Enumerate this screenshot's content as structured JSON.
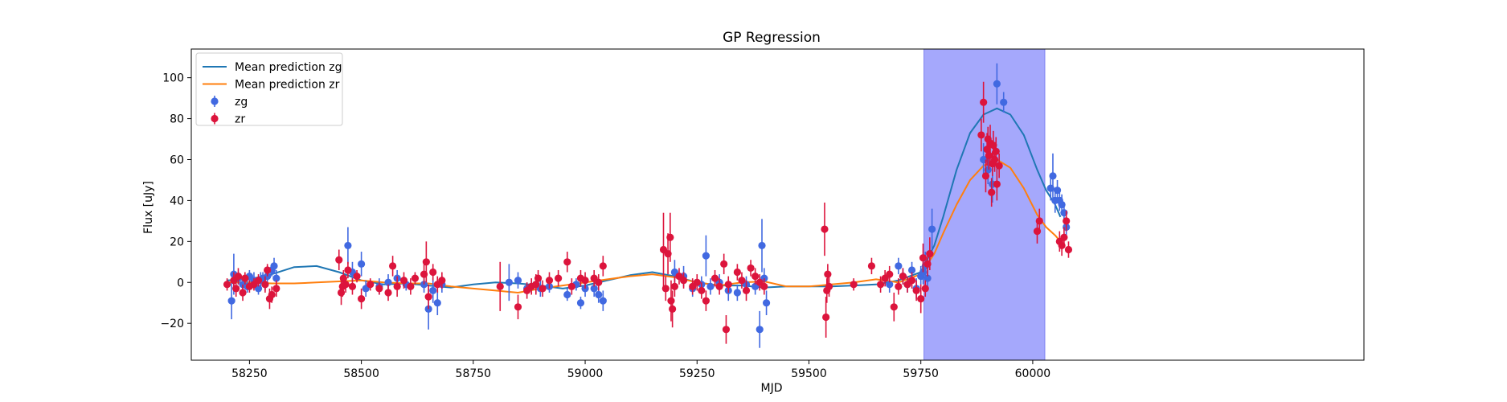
{
  "chart_data": {
    "type": "scatter",
    "title": "GP Regression",
    "xlabel": "MJD",
    "ylabel": "Flux [uJy]",
    "xlim": [
      58120,
      60740
    ],
    "ylim": [
      -38,
      114
    ],
    "xticks": [
      58250,
      58500,
      58750,
      59000,
      59250,
      59500,
      59750,
      60000
    ],
    "yticks": [
      -20,
      0,
      20,
      40,
      60,
      80,
      100
    ],
    "legend_position": "top-left",
    "highlight_span": {
      "x0": 59757,
      "x1": 60027,
      "color": "#a5a8fc"
    },
    "lines": [
      {
        "name": "Mean prediction zg",
        "color": "#1f77b4",
        "x": [
          58200,
          58250,
          58300,
          58350,
          58400,
          58450,
          58500,
          58550,
          58600,
          58650,
          58700,
          58750,
          58800,
          58850,
          58900,
          58950,
          59000,
          59050,
          59100,
          59150,
          59200,
          59250,
          59300,
          59350,
          59400,
          59450,
          59500,
          59550,
          59600,
          59650,
          59700,
          59750,
          59780,
          59800,
          59830,
          59860,
          59890,
          59920,
          59950,
          59980,
          60010,
          60030,
          60050,
          60062
        ],
        "y": [
          1,
          1.5,
          4,
          7.5,
          8,
          5,
          1,
          -1,
          -0.5,
          -1.5,
          -2.5,
          -1,
          0,
          -0.5,
          -1.5,
          -3,
          -1.5,
          1,
          3.5,
          5,
          3,
          0,
          -1.5,
          -1.5,
          -2.5,
          -2,
          -2,
          -2,
          -1.5,
          -1,
          1,
          5,
          18,
          32,
          55,
          73,
          82,
          85,
          82,
          72,
          55,
          45,
          38,
          32
        ]
      },
      {
        "name": "Mean prediction zr",
        "color": "#ff7f0e",
        "x": [
          58200,
          58250,
          58300,
          58350,
          58400,
          58450,
          58500,
          58550,
          58600,
          58650,
          58700,
          58750,
          58800,
          58850,
          58900,
          58950,
          59000,
          59050,
          59100,
          59150,
          59200,
          59250,
          59300,
          59350,
          59400,
          59450,
          59500,
          59550,
          59600,
          59650,
          59700,
          59750,
          59780,
          59800,
          59830,
          59860,
          59890,
          59920,
          59950,
          59980,
          60010,
          60030,
          60050,
          60062
        ],
        "y": [
          0,
          0,
          -0.5,
          -0.5,
          0,
          0.5,
          1,
          0,
          -0.5,
          -0.5,
          -2,
          -3,
          -4,
          -5,
          -3,
          -1.5,
          0,
          1.5,
          3,
          4,
          2.5,
          0,
          -1.5,
          0,
          0.5,
          -2,
          -2,
          -1,
          0,
          1.5,
          0,
          4,
          14,
          24,
          38,
          50,
          57,
          60,
          56,
          46,
          33,
          27,
          23,
          20
        ]
      }
    ],
    "series": [
      {
        "name": "zg",
        "color": "#4169e1",
        "points": [
          [
            58210,
            -9,
            9
          ],
          [
            58215,
            4,
            10
          ],
          [
            58225,
            2,
            3
          ],
          [
            58235,
            -1,
            4
          ],
          [
            58245,
            -2,
            3
          ],
          [
            58250,
            3,
            3
          ],
          [
            58260,
            1,
            4
          ],
          [
            58270,
            -3,
            3
          ],
          [
            58275,
            1,
            4
          ],
          [
            58280,
            2,
            3
          ],
          [
            58285,
            -1,
            3
          ],
          [
            58290,
            3,
            4
          ],
          [
            58300,
            6,
            3
          ],
          [
            58305,
            8,
            4
          ],
          [
            58310,
            2,
            4
          ],
          [
            58470,
            18,
            9
          ],
          [
            58480,
            5,
            5
          ],
          [
            58500,
            9,
            6
          ],
          [
            58510,
            -3,
            4
          ],
          [
            58540,
            -2,
            4
          ],
          [
            58560,
            0,
            4
          ],
          [
            58580,
            2,
            4
          ],
          [
            58600,
            -1,
            3
          ],
          [
            58640,
            -1,
            4
          ],
          [
            58650,
            -13,
            10
          ],
          [
            58660,
            -4,
            6
          ],
          [
            58670,
            -10,
            6
          ],
          [
            58680,
            -1,
            4
          ],
          [
            58830,
            0,
            9
          ],
          [
            58850,
            1,
            4
          ],
          [
            58870,
            -3,
            3
          ],
          [
            58880,
            -2,
            3
          ],
          [
            58890,
            -1,
            4
          ],
          [
            58900,
            -3,
            4
          ],
          [
            58920,
            -2,
            3
          ],
          [
            58960,
            -6,
            3
          ],
          [
            58980,
            -1,
            3
          ],
          [
            58990,
            -10,
            3
          ],
          [
            59000,
            -3,
            4
          ],
          [
            59020,
            -3,
            4
          ],
          [
            59030,
            -6,
            4
          ],
          [
            59040,
            -9,
            5
          ],
          [
            59200,
            5,
            6
          ],
          [
            59220,
            3,
            5
          ],
          [
            59240,
            -3,
            4
          ],
          [
            59260,
            -1,
            4
          ],
          [
            59270,
            13,
            10
          ],
          [
            59280,
            -2,
            4
          ],
          [
            59300,
            0,
            4
          ],
          [
            59320,
            -4,
            5
          ],
          [
            59340,
            -5,
            4
          ],
          [
            59360,
            -1,
            4
          ],
          [
            59380,
            -2,
            4
          ],
          [
            59390,
            -23,
            9
          ],
          [
            59395,
            18,
            13
          ],
          [
            59400,
            2,
            5
          ],
          [
            59405,
            -10,
            6
          ],
          [
            59680,
            -1,
            4
          ],
          [
            59700,
            8,
            4
          ],
          [
            59710,
            3,
            4
          ],
          [
            59720,
            -1,
            4
          ],
          [
            59730,
            6,
            4
          ],
          [
            59740,
            -3,
            5
          ],
          [
            59750,
            3,
            5
          ],
          [
            59755,
            5,
            6
          ],
          [
            59760,
            8,
            7
          ],
          [
            59765,
            2,
            4
          ],
          [
            59770,
            14,
            6
          ],
          [
            59775,
            26,
            10
          ],
          [
            59890,
            60,
            8
          ],
          [
            59900,
            55,
            7
          ],
          [
            59910,
            48,
            9
          ],
          [
            59920,
            97,
            10
          ],
          [
            59935,
            88,
            5
          ],
          [
            60040,
            46,
            6
          ],
          [
            60045,
            52,
            11
          ],
          [
            60050,
            40,
            6
          ],
          [
            60055,
            45,
            5
          ],
          [
            60060,
            40,
            5
          ],
          [
            60065,
            38,
            5
          ],
          [
            60070,
            34,
            5
          ],
          [
            60075,
            27,
            5
          ]
        ]
      },
      {
        "name": "zr",
        "color": "#dc143c",
        "points": [
          [
            58200,
            -1,
            3
          ],
          [
            58215,
            1,
            4
          ],
          [
            58220,
            -3,
            4
          ],
          [
            58225,
            3,
            4
          ],
          [
            58235,
            -5,
            4
          ],
          [
            58240,
            2,
            3
          ],
          [
            58250,
            -2,
            3
          ],
          [
            58260,
            -1,
            3
          ],
          [
            58270,
            1,
            3
          ],
          [
            58285,
            -1,
            4
          ],
          [
            58290,
            6,
            3
          ],
          [
            58295,
            -8,
            5
          ],
          [
            58300,
            -6,
            4
          ],
          [
            58310,
            -3,
            4
          ],
          [
            58450,
            11,
            5
          ],
          [
            58455,
            -5,
            6
          ],
          [
            58458,
            -2,
            5
          ],
          [
            58460,
            2,
            4
          ],
          [
            58465,
            -1,
            4
          ],
          [
            58470,
            6,
            4
          ],
          [
            58480,
            -2,
            4
          ],
          [
            58490,
            3,
            3
          ],
          [
            58500,
            -8,
            5
          ],
          [
            58520,
            -1,
            3
          ],
          [
            58540,
            -3,
            3
          ],
          [
            58560,
            -5,
            4
          ],
          [
            58570,
            8,
            5
          ],
          [
            58580,
            -2,
            5
          ],
          [
            58595,
            1,
            4
          ],
          [
            58610,
            -2,
            4
          ],
          [
            58620,
            2,
            3
          ],
          [
            58640,
            4,
            5
          ],
          [
            58645,
            10,
            10
          ],
          [
            58650,
            -7,
            6
          ],
          [
            58660,
            5,
            4
          ],
          [
            58670,
            -1,
            4
          ],
          [
            58680,
            1,
            4
          ],
          [
            58810,
            -2,
            12
          ],
          [
            58850,
            -12,
            6
          ],
          [
            58870,
            -4,
            4
          ],
          [
            58880,
            -2,
            4
          ],
          [
            58890,
            -1,
            5
          ],
          [
            58895,
            2,
            4
          ],
          [
            58905,
            -3,
            4
          ],
          [
            58920,
            1,
            4
          ],
          [
            58940,
            2,
            4
          ],
          [
            58960,
            10,
            5
          ],
          [
            58970,
            -2,
            4
          ],
          [
            58990,
            2,
            4
          ],
          [
            59000,
            1,
            4
          ],
          [
            59020,
            2,
            4
          ],
          [
            59030,
            0,
            4
          ],
          [
            59040,
            8,
            5
          ],
          [
            59175,
            16,
            18
          ],
          [
            59180,
            -3,
            6
          ],
          [
            59185,
            14,
            10
          ],
          [
            59190,
            22,
            12
          ],
          [
            59192,
            -9,
            10
          ],
          [
            59195,
            -13,
            9
          ],
          [
            59200,
            -2,
            5
          ],
          [
            59210,
            3,
            4
          ],
          [
            59220,
            1,
            4
          ],
          [
            59240,
            -2,
            4
          ],
          [
            59250,
            0,
            4
          ],
          [
            59260,
            -4,
            4
          ],
          [
            59270,
            -9,
            5
          ],
          [
            59290,
            2,
            4
          ],
          [
            59300,
            -2,
            4
          ],
          [
            59310,
            9,
            5
          ],
          [
            59315,
            -23,
            7
          ],
          [
            59320,
            -1,
            4
          ],
          [
            59340,
            5,
            4
          ],
          [
            59350,
            1,
            4
          ],
          [
            59360,
            -4,
            5
          ],
          [
            59370,
            7,
            4
          ],
          [
            59380,
            3,
            4
          ],
          [
            59390,
            0,
            4
          ],
          [
            59400,
            -2,
            4
          ],
          [
            59535,
            26,
            13
          ],
          [
            59538,
            -17,
            10
          ],
          [
            59540,
            -4,
            6
          ],
          [
            59542,
            4,
            5
          ],
          [
            59545,
            -2,
            5
          ],
          [
            59600,
            -1,
            3
          ],
          [
            59640,
            8,
            4
          ],
          [
            59660,
            -1,
            4
          ],
          [
            59670,
            2,
            4
          ],
          [
            59680,
            4,
            4
          ],
          [
            59690,
            -12,
            7
          ],
          [
            59700,
            -2,
            4
          ],
          [
            59710,
            3,
            4
          ],
          [
            59720,
            -1,
            4
          ],
          [
            59730,
            1,
            4
          ],
          [
            59740,
            -4,
            5
          ],
          [
            59750,
            -8,
            7
          ],
          [
            59755,
            12,
            7
          ],
          [
            59760,
            -3,
            4
          ],
          [
            59765,
            9,
            6
          ],
          [
            59770,
            14,
            8
          ],
          [
            59885,
            72,
            8
          ],
          [
            59890,
            88,
            10
          ],
          [
            59895,
            52,
            8
          ],
          [
            59898,
            65,
            8
          ],
          [
            59900,
            70,
            6
          ],
          [
            59902,
            62,
            7
          ],
          [
            59905,
            68,
            9
          ],
          [
            59908,
            44,
            7
          ],
          [
            59910,
            58,
            6
          ],
          [
            59912,
            67,
            7
          ],
          [
            59915,
            60,
            6
          ],
          [
            59918,
            64,
            7
          ],
          [
            59920,
            48,
            8
          ],
          [
            59925,
            57,
            6
          ],
          [
            60010,
            25,
            6
          ],
          [
            60015,
            30,
            6
          ],
          [
            60060,
            20,
            5
          ],
          [
            60065,
            18,
            5
          ],
          [
            60070,
            22,
            5
          ],
          [
            60075,
            30,
            5
          ],
          [
            60080,
            16,
            4
          ]
        ]
      }
    ],
    "legend": [
      {
        "label": "Mean prediction zg",
        "kind": "line",
        "color": "#1f77b4"
      },
      {
        "label": "Mean prediction zr",
        "kind": "line",
        "color": "#ff7f0e"
      },
      {
        "label": "zg",
        "kind": "marker",
        "color": "#4169e1"
      },
      {
        "label": "zr",
        "kind": "marker",
        "color": "#dc143c"
      }
    ]
  }
}
